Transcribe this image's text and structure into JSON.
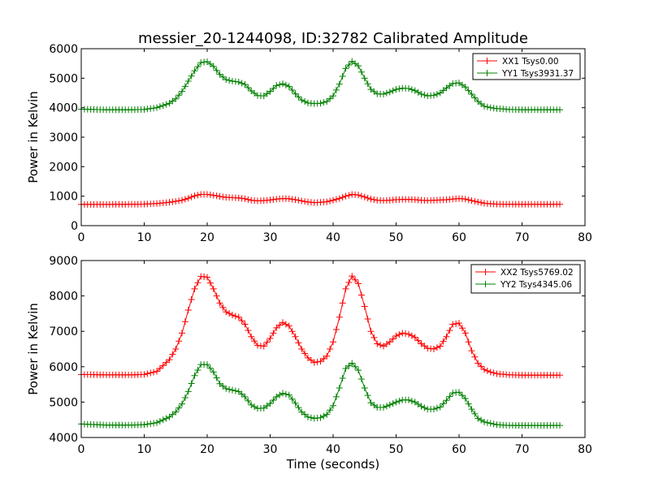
{
  "chart_data": [
    {
      "type": "line",
      "title": "messier_20-1244098, ID:32782 Calibrated Amplitude",
      "xlabel": "",
      "ylabel": "Power in Kelvin",
      "xlim": [
        0,
        80
      ],
      "ylim": [
        0,
        6000
      ],
      "xticks": [
        0,
        10,
        20,
        30,
        40,
        50,
        60,
        70,
        80
      ],
      "yticks": [
        0,
        1000,
        2000,
        3000,
        4000,
        5000,
        6000
      ],
      "grid": false,
      "legend": "top-right",
      "marker": "+",
      "series": [
        {
          "name": "XX1 Tsys0.00",
          "color": "#ff0000",
          "x": [
            0,
            4,
            8,
            10,
            12,
            14,
            16,
            17,
            18,
            19,
            20,
            21,
            22,
            23,
            24,
            25,
            26,
            27,
            28,
            29,
            30,
            31,
            32,
            33,
            34,
            35,
            36,
            37,
            38,
            39,
            40,
            41,
            42,
            43,
            44,
            45,
            46,
            47,
            48,
            49,
            50,
            51,
            52,
            53,
            54,
            55,
            56,
            57,
            58,
            59,
            60,
            61,
            62,
            63,
            64,
            65,
            66,
            68,
            70,
            72,
            74,
            76
          ],
          "y": [
            720,
            720,
            725,
            730,
            750,
            790,
            860,
            930,
            1010,
            1060,
            1060,
            1030,
            990,
            960,
            950,
            940,
            910,
            860,
            840,
            850,
            870,
            900,
            920,
            910,
            880,
            840,
            800,
            780,
            790,
            810,
            860,
            920,
            1000,
            1060,
            1040,
            970,
            900,
            860,
            850,
            860,
            880,
            890,
            890,
            880,
            860,
            850,
            860,
            870,
            880,
            900,
            920,
            900,
            850,
            800,
            760,
            740,
            730,
            725,
            725,
            725,
            725,
            725
          ]
        },
        {
          "name": "YY1 Tsys3931.37",
          "color": "#008000",
          "x": [
            0,
            4,
            8,
            10,
            12,
            14,
            15,
            16,
            17,
            18,
            19,
            20,
            21,
            22,
            23,
            24,
            25,
            26,
            27,
            28,
            29,
            30,
            31,
            32,
            33,
            34,
            35,
            36,
            37,
            38,
            39,
            40,
            41,
            42,
            43,
            44,
            45,
            46,
            47,
            48,
            49,
            50,
            51,
            52,
            53,
            54,
            55,
            56,
            57,
            58,
            59,
            60,
            61,
            62,
            63,
            64,
            65,
            66,
            68,
            70,
            72,
            74,
            76
          ],
          "y": [
            3950,
            3930,
            3930,
            3940,
            4000,
            4150,
            4300,
            4550,
            4900,
            5250,
            5530,
            5560,
            5400,
            5130,
            4950,
            4900,
            4870,
            4790,
            4570,
            4410,
            4400,
            4550,
            4750,
            4810,
            4720,
            4470,
            4260,
            4160,
            4140,
            4150,
            4210,
            4400,
            4800,
            5330,
            5570,
            5420,
            5000,
            4620,
            4470,
            4460,
            4530,
            4620,
            4660,
            4650,
            4580,
            4460,
            4400,
            4420,
            4500,
            4670,
            4820,
            4840,
            4700,
            4460,
            4210,
            4050,
            4000,
            3970,
            3940,
            3930,
            3930,
            3930,
            3930
          ]
        }
      ]
    },
    {
      "type": "line",
      "title": "",
      "xlabel": "Time (seconds)",
      "ylabel": "Power in Kelvin",
      "xlim": [
        0,
        80
      ],
      "ylim": [
        4000,
        9000
      ],
      "xticks": [
        0,
        10,
        20,
        30,
        40,
        50,
        60,
        70,
        80
      ],
      "yticks": [
        4000,
        5000,
        6000,
        7000,
        8000,
        9000
      ],
      "grid": false,
      "legend": "top-right",
      "marker": "+",
      "series": [
        {
          "name": "XX2 Tsys5769.02",
          "color": "#ff0000",
          "x": [
            0,
            4,
            8,
            10,
            12,
            14,
            15,
            16,
            17,
            18,
            19,
            20,
            21,
            22,
            23,
            24,
            25,
            26,
            27,
            28,
            29,
            30,
            31,
            32,
            33,
            34,
            35,
            36,
            37,
            38,
            39,
            40,
            41,
            42,
            43,
            44,
            45,
            46,
            47,
            48,
            49,
            50,
            51,
            52,
            53,
            54,
            55,
            56,
            57,
            58,
            59,
            60,
            61,
            62,
            63,
            64,
            65,
            66,
            68,
            70,
            72,
            74,
            76
          ],
          "y": [
            5780,
            5770,
            5770,
            5780,
            5870,
            6200,
            6500,
            6950,
            7600,
            8200,
            8550,
            8530,
            8200,
            7800,
            7550,
            7460,
            7400,
            7200,
            6850,
            6600,
            6580,
            6800,
            7100,
            7250,
            7150,
            6850,
            6500,
            6250,
            6120,
            6150,
            6300,
            6700,
            7400,
            8200,
            8560,
            8350,
            7700,
            7000,
            6650,
            6580,
            6700,
            6870,
            6950,
            6920,
            6830,
            6650,
            6520,
            6500,
            6580,
            6850,
            7200,
            7230,
            6950,
            6450,
            6100,
            5920,
            5850,
            5800,
            5770,
            5760,
            5760,
            5760,
            5760
          ]
        },
        {
          "name": "YY2 Tsys4345.06",
          "color": "#008000",
          "x": [
            0,
            4,
            8,
            10,
            12,
            14,
            15,
            16,
            17,
            18,
            19,
            20,
            21,
            22,
            23,
            24,
            25,
            26,
            27,
            28,
            29,
            30,
            31,
            32,
            33,
            34,
            35,
            36,
            37,
            38,
            39,
            40,
            41,
            42,
            43,
            44,
            45,
            46,
            47,
            48,
            49,
            50,
            51,
            52,
            53,
            54,
            55,
            56,
            57,
            58,
            59,
            60,
            61,
            62,
            63,
            64,
            65,
            66,
            68,
            70,
            72,
            74,
            76
          ],
          "y": [
            4380,
            4350,
            4350,
            4360,
            4420,
            4580,
            4720,
            4950,
            5300,
            5750,
            6060,
            6060,
            5850,
            5520,
            5380,
            5340,
            5300,
            5150,
            4920,
            4820,
            4830,
            4960,
            5150,
            5250,
            5200,
            4970,
            4720,
            4580,
            4540,
            4560,
            4650,
            4900,
            5400,
            5950,
            6100,
            5900,
            5400,
            4980,
            4850,
            4850,
            4920,
            5000,
            5060,
            5060,
            5000,
            4880,
            4800,
            4800,
            4860,
            5050,
            5260,
            5280,
            5100,
            4800,
            4540,
            4440,
            4400,
            4360,
            4340,
            4340,
            4340,
            4340,
            4340
          ]
        }
      ]
    }
  ]
}
